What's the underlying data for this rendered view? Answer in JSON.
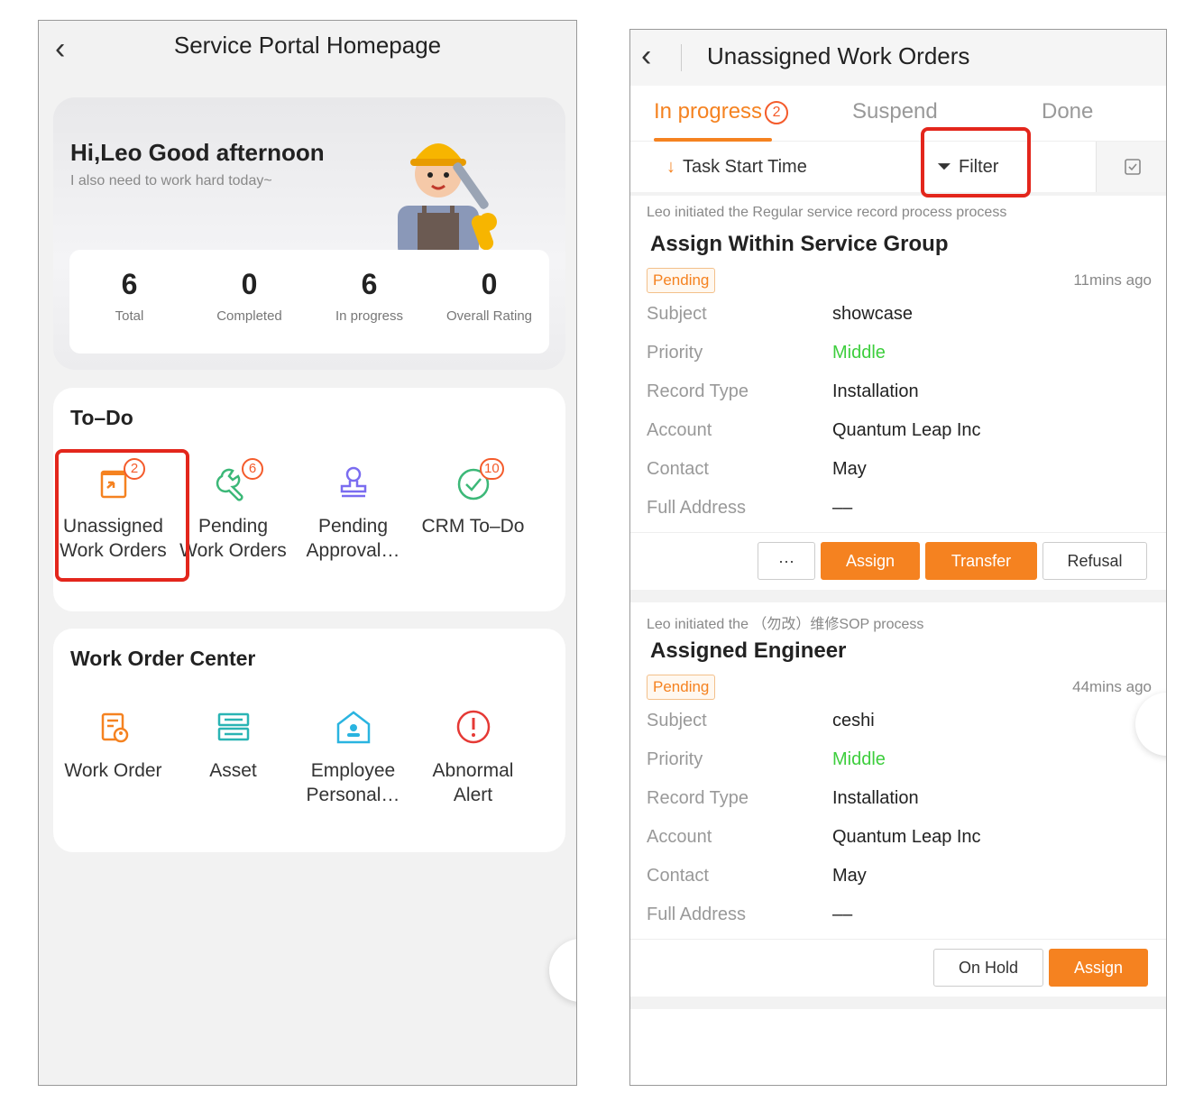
{
  "left": {
    "title": "Service Portal Homepage",
    "greeting": "Hi,Leo Good afternoon",
    "subgreeting": "I also need to work hard today~",
    "stats": [
      {
        "num": "6",
        "label": "Total"
      },
      {
        "num": "0",
        "label": "Completed"
      },
      {
        "num": "6",
        "label": "In progress"
      },
      {
        "num": "0",
        "label": "Overall Rating"
      }
    ],
    "todo": {
      "title": "To–Do",
      "items": [
        {
          "line1": "Unassigned",
          "line2": "Work Orders",
          "badge": "2",
          "icon": "assign-doc-icon"
        },
        {
          "line1": "Pending",
          "line2": "Work Orders",
          "badge": "6",
          "icon": "wrench-icon"
        },
        {
          "line1": "Pending",
          "line2": "Approval…",
          "badge": "",
          "icon": "stamp-icon"
        },
        {
          "line1": "CRM To–Do",
          "line2": "",
          "badge": "10",
          "icon": "check-circle-icon"
        }
      ]
    },
    "woc": {
      "title": "Work Order Center",
      "items": [
        {
          "line1": "Work Order",
          "line2": "",
          "icon": "work-order-icon"
        },
        {
          "line1": "Asset",
          "line2": "",
          "icon": "asset-icon"
        },
        {
          "line1": "Employee",
          "line2": "Personal…",
          "icon": "employee-icon"
        },
        {
          "line1": "Abnormal",
          "line2": "Alert",
          "icon": "alert-icon"
        }
      ]
    }
  },
  "right": {
    "title": "Unassigned Work Orders",
    "tabs": {
      "in_progress": "In progress",
      "in_progress_badge": "2",
      "suspend": "Suspend",
      "done": "Done"
    },
    "sort_label": "Task Start Time",
    "filter_label": "Filter",
    "orders": [
      {
        "initiated": "Leo initiated the Regular service record process process",
        "title": "Assign Within Service Group",
        "status": "Pending",
        "ago": "11mins ago",
        "fields": [
          {
            "label": "Subject",
            "value": "showcase"
          },
          {
            "label": "Priority",
            "value": "Middle"
          },
          {
            "label": "Record Type",
            "value": "Installation"
          },
          {
            "label": "Account",
            "value": "Quantum Leap Inc"
          },
          {
            "label": "Contact",
            "value": "May"
          },
          {
            "label": "Full Address",
            "value": "––"
          }
        ],
        "buttons": {
          "more": "···",
          "assign": "Assign",
          "transfer": "Transfer",
          "refusal": "Refusal"
        }
      },
      {
        "initiated": "Leo initiated the （勿改）维修SOP process",
        "title": "Assigned Engineer",
        "status": "Pending",
        "ago": "44mins ago",
        "fields": [
          {
            "label": "Subject",
            "value": "ceshi"
          },
          {
            "label": "Priority",
            "value": "Middle"
          },
          {
            "label": "Record Type",
            "value": "Installation"
          },
          {
            "label": "Account",
            "value": "Quantum Leap Inc"
          },
          {
            "label": "Contact",
            "value": "May"
          },
          {
            "label": "Full Address",
            "value": "––"
          }
        ],
        "buttons": {
          "onhold": "On Hold",
          "assign": "Assign"
        }
      }
    ]
  },
  "colors": {
    "accent": "#f58220",
    "highlight": "#e3261c",
    "priority_middle": "#3dce3d"
  }
}
